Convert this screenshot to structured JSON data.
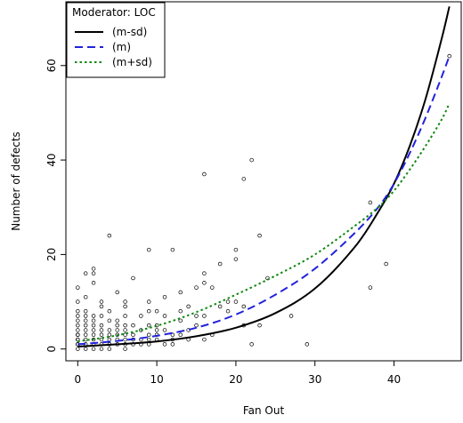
{
  "chart_data": {
    "type": "scatter",
    "title": "",
    "xlabel": "Fan Out",
    "ylabel": "Number of defects",
    "xlim": [
      -1.5,
      48.5
    ],
    "ylim": [
      -2.5,
      73.5
    ],
    "x_ticks": [
      "0",
      "10",
      "20",
      "30",
      "40"
    ],
    "y_ticks": [
      "0",
      "20",
      "40",
      "60"
    ],
    "grid": false,
    "legend": {
      "title": "Moderator: LOC",
      "position": "top-left",
      "entries": [
        {
          "label": "(m-sd)",
          "color": "#000000",
          "dash": "solid"
        },
        {
          "label": "(m)",
          "color": "#2222dd",
          "dash": "dashed"
        },
        {
          "label": "(m+sd)",
          "color": "#118811",
          "dash": "dotted"
        }
      ]
    },
    "series": [
      {
        "name": "(m-sd)",
        "kind": "line",
        "color": "#000000",
        "x": [
          0,
          5,
          10,
          15,
          20,
          25,
          30,
          35,
          38,
          40,
          42,
          44,
          46,
          47
        ],
        "y": [
          0.5,
          1.0,
          1.6,
          2.7,
          4.5,
          7.6,
          12.8,
          21.5,
          29.0,
          35.0,
          43.0,
          53.0,
          65.5,
          72.5
        ]
      },
      {
        "name": "(m)",
        "kind": "line",
        "color": "#2222dd",
        "x": [
          0,
          5,
          10,
          15,
          20,
          25,
          30,
          35,
          38,
          40,
          42,
          44,
          46,
          47
        ],
        "y": [
          1.0,
          1.7,
          2.8,
          4.5,
          7.3,
          11.5,
          17.0,
          24.5,
          30.0,
          35.0,
          41.5,
          49.0,
          57.5,
          62.0
        ]
      },
      {
        "name": "(m+sd)",
        "kind": "line",
        "color": "#118811",
        "x": [
          0,
          5,
          10,
          15,
          20,
          25,
          30,
          35,
          38,
          40,
          42,
          44,
          46,
          47
        ],
        "y": [
          1.6,
          2.9,
          4.9,
          7.8,
          11.5,
          15.5,
          20.0,
          26.0,
          30.0,
          33.5,
          38.0,
          43.0,
          48.5,
          52.0
        ]
      }
    ],
    "points": {
      "x": [
        0,
        0,
        0,
        0,
        0,
        0,
        0,
        0,
        0,
        0,
        0,
        0,
        0,
        0,
        1,
        1,
        1,
        1,
        1,
        1,
        1,
        1,
        1,
        1,
        1,
        2,
        2,
        2,
        2,
        2,
        2,
        2,
        2,
        2,
        2,
        2,
        3,
        3,
        3,
        3,
        3,
        3,
        3,
        3,
        3,
        4,
        4,
        4,
        4,
        4,
        4,
        4,
        4,
        5,
        5,
        5,
        5,
        5,
        5,
        5,
        6,
        6,
        6,
        6,
        6,
        6,
        6,
        6,
        6,
        7,
        7,
        7,
        7,
        7,
        8,
        8,
        8,
        8,
        9,
        9,
        9,
        9,
        9,
        9,
        9,
        10,
        10,
        10,
        10,
        10,
        11,
        11,
        11,
        11,
        12,
        12,
        12,
        12,
        13,
        13,
        13,
        13,
        14,
        14,
        14,
        15,
        15,
        15,
        16,
        16,
        16,
        16,
        16,
        17,
        17,
        18,
        18,
        19,
        19,
        20,
        20,
        20,
        21,
        21,
        21,
        22,
        22,
        23,
        23,
        24,
        27,
        29,
        37,
        37,
        39,
        47
      ],
      "y": [
        0,
        1,
        2,
        3,
        4,
        5,
        6,
        7,
        8,
        10,
        13,
        1,
        2,
        3,
        0,
        1,
        2,
        3,
        4,
        5,
        6,
        7,
        8,
        11,
        16,
        0,
        1,
        2,
        3,
        4,
        5,
        6,
        7,
        14,
        16,
        17,
        0,
        1,
        2,
        3,
        4,
        5,
        7,
        9,
        10,
        0,
        1,
        2,
        3,
        4,
        6,
        8,
        24,
        1,
        2,
        3,
        4,
        5,
        6,
        12,
        0,
        1,
        2,
        3,
        4,
        5,
        7,
        9,
        10,
        1,
        2,
        3,
        5,
        15,
        1,
        2,
        4,
        7,
        1,
        2,
        3,
        5,
        8,
        10,
        21,
        2,
        3,
        4,
        5,
        8,
        1,
        4,
        7,
        11,
        1,
        2,
        3,
        21,
        3,
        6,
        8,
        12,
        2,
        4,
        9,
        5,
        7,
        13,
        2,
        7,
        14,
        16,
        37,
        3,
        13,
        9,
        18,
        8,
        10,
        10,
        19,
        21,
        5,
        9,
        36,
        1,
        40,
        5,
        24,
        15,
        7,
        1,
        13,
        31,
        18,
        62
      ]
    }
  }
}
